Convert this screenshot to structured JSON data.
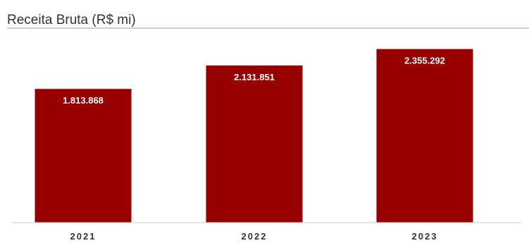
{
  "chart_data": {
    "type": "bar",
    "title": "Receita Bruta (R$ mi)",
    "categories": [
      "2021",
      "2022",
      "2023"
    ],
    "values": [
      1813868,
      2131851,
      2355292
    ],
    "value_labels": [
      "1.813.868",
      "2.131.851",
      "2.355.292"
    ],
    "ylim": [
      0,
      2600000
    ],
    "grid": false,
    "legend": "none",
    "xlabel": "",
    "ylabel": ""
  },
  "colors": {
    "bar": "#980000",
    "title": "#333333",
    "divider": "#9e9e9e",
    "axis": "#cccccc"
  }
}
